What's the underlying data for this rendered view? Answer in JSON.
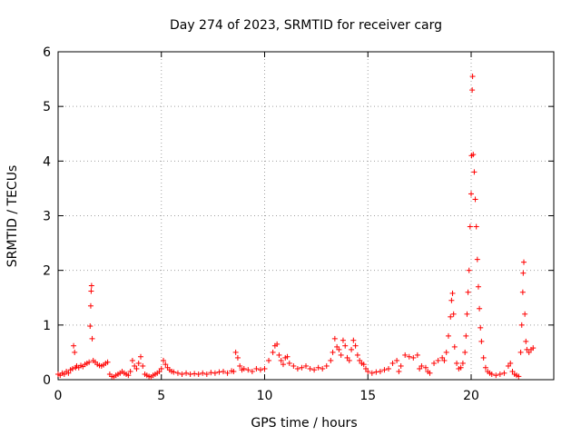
{
  "chart_data": {
    "type": "scatter",
    "title": "Day 274 of 2023, SRMTID for receiver carg",
    "xlabel": "GPS time / hours",
    "ylabel": "SRMTID / TECUs",
    "xlim": [
      0,
      24
    ],
    "ylim": [
      0,
      6
    ],
    "xticks": [
      0,
      5,
      10,
      15,
      20
    ],
    "yticks": [
      0,
      1,
      2,
      3,
      4,
      5,
      6
    ],
    "grid": true,
    "marker": "+",
    "color": "#ff0000",
    "series": [
      {
        "name": "SRMTID",
        "points": [
          [
            0.0,
            0.1
          ],
          [
            0.1,
            0.08
          ],
          [
            0.2,
            0.12
          ],
          [
            0.3,
            0.1
          ],
          [
            0.4,
            0.15
          ],
          [
            0.5,
            0.12
          ],
          [
            0.6,
            0.18
          ],
          [
            0.7,
            0.2
          ],
          [
            0.75,
            0.62
          ],
          [
            0.8,
            0.5
          ],
          [
            0.85,
            0.22
          ],
          [
            0.9,
            0.25
          ],
          [
            1.0,
            0.22
          ],
          [
            1.1,
            0.26
          ],
          [
            1.2,
            0.24
          ],
          [
            1.3,
            0.28
          ],
          [
            1.4,
            0.3
          ],
          [
            1.5,
            0.32
          ],
          [
            1.55,
            0.98
          ],
          [
            1.58,
            1.35
          ],
          [
            1.6,
            1.62
          ],
          [
            1.62,
            1.72
          ],
          [
            1.65,
            0.75
          ],
          [
            1.7,
            0.35
          ],
          [
            1.8,
            0.32
          ],
          [
            1.9,
            0.28
          ],
          [
            2.0,
            0.26
          ],
          [
            2.1,
            0.25
          ],
          [
            2.2,
            0.27
          ],
          [
            2.3,
            0.3
          ],
          [
            2.4,
            0.32
          ],
          [
            2.5,
            0.1
          ],
          [
            2.6,
            0.06
          ],
          [
            2.7,
            0.05
          ],
          [
            2.8,
            0.08
          ],
          [
            2.9,
            0.1
          ],
          [
            3.0,
            0.12
          ],
          [
            3.1,
            0.15
          ],
          [
            3.2,
            0.12
          ],
          [
            3.3,
            0.1
          ],
          [
            3.4,
            0.08
          ],
          [
            3.5,
            0.15
          ],
          [
            3.6,
            0.35
          ],
          [
            3.7,
            0.25
          ],
          [
            3.8,
            0.2
          ],
          [
            3.9,
            0.3
          ],
          [
            4.0,
            0.42
          ],
          [
            4.1,
            0.25
          ],
          [
            4.2,
            0.1
          ],
          [
            4.3,
            0.08
          ],
          [
            4.4,
            0.06
          ],
          [
            4.5,
            0.05
          ],
          [
            4.6,
            0.08
          ],
          [
            4.7,
            0.1
          ],
          [
            4.8,
            0.12
          ],
          [
            4.9,
            0.15
          ],
          [
            5.0,
            0.2
          ],
          [
            5.1,
            0.35
          ],
          [
            5.2,
            0.28
          ],
          [
            5.3,
            0.22
          ],
          [
            5.4,
            0.18
          ],
          [
            5.5,
            0.15
          ],
          [
            5.6,
            0.14
          ],
          [
            5.8,
            0.12
          ],
          [
            6.0,
            0.1
          ],
          [
            6.2,
            0.12
          ],
          [
            6.4,
            0.1
          ],
          [
            6.6,
            0.11
          ],
          [
            6.8,
            0.1
          ],
          [
            7.0,
            0.12
          ],
          [
            7.2,
            0.1
          ],
          [
            7.4,
            0.13
          ],
          [
            7.6,
            0.12
          ],
          [
            7.8,
            0.14
          ],
          [
            8.0,
            0.15
          ],
          [
            8.2,
            0.12
          ],
          [
            8.4,
            0.16
          ],
          [
            8.5,
            0.15
          ],
          [
            8.6,
            0.5
          ],
          [
            8.7,
            0.4
          ],
          [
            8.8,
            0.25
          ],
          [
            8.9,
            0.18
          ],
          [
            9.0,
            0.2
          ],
          [
            9.2,
            0.18
          ],
          [
            9.4,
            0.15
          ],
          [
            9.6,
            0.2
          ],
          [
            9.8,
            0.18
          ],
          [
            10.0,
            0.2
          ],
          [
            10.2,
            0.35
          ],
          [
            10.4,
            0.5
          ],
          [
            10.5,
            0.62
          ],
          [
            10.6,
            0.65
          ],
          [
            10.7,
            0.45
          ],
          [
            10.8,
            0.35
          ],
          [
            10.9,
            0.28
          ],
          [
            11.0,
            0.4
          ],
          [
            11.1,
            0.42
          ],
          [
            11.2,
            0.3
          ],
          [
            11.4,
            0.25
          ],
          [
            11.6,
            0.2
          ],
          [
            11.8,
            0.22
          ],
          [
            12.0,
            0.25
          ],
          [
            12.2,
            0.2
          ],
          [
            12.4,
            0.18
          ],
          [
            12.6,
            0.22
          ],
          [
            12.8,
            0.2
          ],
          [
            13.0,
            0.25
          ],
          [
            13.2,
            0.35
          ],
          [
            13.3,
            0.5
          ],
          [
            13.4,
            0.75
          ],
          [
            13.5,
            0.6
          ],
          [
            13.6,
            0.55
          ],
          [
            13.7,
            0.45
          ],
          [
            13.8,
            0.72
          ],
          [
            13.9,
            0.62
          ],
          [
            14.0,
            0.4
          ],
          [
            14.1,
            0.35
          ],
          [
            14.2,
            0.55
          ],
          [
            14.3,
            0.72
          ],
          [
            14.4,
            0.62
          ],
          [
            14.5,
            0.45
          ],
          [
            14.6,
            0.35
          ],
          [
            14.7,
            0.3
          ],
          [
            14.8,
            0.28
          ],
          [
            14.9,
            0.2
          ],
          [
            15.0,
            0.15
          ],
          [
            15.2,
            0.12
          ],
          [
            15.4,
            0.14
          ],
          [
            15.6,
            0.15
          ],
          [
            15.8,
            0.18
          ],
          [
            16.0,
            0.2
          ],
          [
            16.2,
            0.3
          ],
          [
            16.4,
            0.35
          ],
          [
            16.5,
            0.15
          ],
          [
            16.6,
            0.25
          ],
          [
            16.8,
            0.45
          ],
          [
            17.0,
            0.42
          ],
          [
            17.2,
            0.4
          ],
          [
            17.4,
            0.45
          ],
          [
            17.5,
            0.2
          ],
          [
            17.6,
            0.25
          ],
          [
            17.8,
            0.22
          ],
          [
            17.9,
            0.15
          ],
          [
            18.0,
            0.12
          ],
          [
            18.2,
            0.3
          ],
          [
            18.4,
            0.35
          ],
          [
            18.6,
            0.4
          ],
          [
            18.7,
            0.35
          ],
          [
            18.8,
            0.5
          ],
          [
            18.9,
            0.8
          ],
          [
            19.0,
            1.15
          ],
          [
            19.05,
            1.45
          ],
          [
            19.1,
            1.58
          ],
          [
            19.15,
            1.2
          ],
          [
            19.2,
            0.6
          ],
          [
            19.3,
            0.3
          ],
          [
            19.4,
            0.2
          ],
          [
            19.5,
            0.22
          ],
          [
            19.6,
            0.3
          ],
          [
            19.7,
            0.5
          ],
          [
            19.75,
            0.8
          ],
          [
            19.8,
            1.2
          ],
          [
            19.85,
            1.6
          ],
          [
            19.9,
            2.0
          ],
          [
            19.95,
            2.8
          ],
          [
            20.0,
            3.4
          ],
          [
            20.02,
            4.1
          ],
          [
            20.05,
            5.3
          ],
          [
            20.07,
            5.55
          ],
          [
            20.1,
            4.12
          ],
          [
            20.15,
            3.8
          ],
          [
            20.2,
            3.3
          ],
          [
            20.25,
            2.8
          ],
          [
            20.3,
            2.2
          ],
          [
            20.35,
            1.7
          ],
          [
            20.4,
            1.3
          ],
          [
            20.45,
            0.95
          ],
          [
            20.5,
            0.7
          ],
          [
            20.6,
            0.4
          ],
          [
            20.7,
            0.22
          ],
          [
            20.8,
            0.15
          ],
          [
            20.9,
            0.12
          ],
          [
            21.0,
            0.1
          ],
          [
            21.2,
            0.08
          ],
          [
            21.4,
            0.1
          ],
          [
            21.6,
            0.12
          ],
          [
            21.8,
            0.25
          ],
          [
            21.9,
            0.3
          ],
          [
            22.0,
            0.15
          ],
          [
            22.1,
            0.1
          ],
          [
            22.2,
            0.08
          ],
          [
            22.3,
            0.06
          ],
          [
            22.4,
            0.5
          ],
          [
            22.45,
            1.0
          ],
          [
            22.5,
            1.6
          ],
          [
            22.52,
            1.95
          ],
          [
            22.55,
            2.15
          ],
          [
            22.6,
            1.2
          ],
          [
            22.65,
            0.7
          ],
          [
            22.7,
            0.55
          ],
          [
            22.8,
            0.5
          ],
          [
            22.9,
            0.55
          ],
          [
            23.0,
            0.58
          ]
        ]
      }
    ]
  }
}
